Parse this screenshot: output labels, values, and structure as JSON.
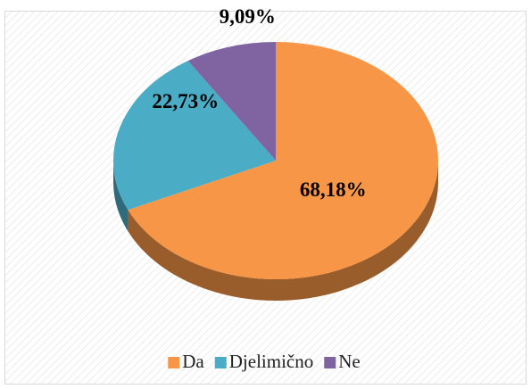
{
  "chart_data": {
    "type": "pie",
    "categories": [
      "Da",
      "Djelimično",
      "Ne"
    ],
    "values": [
      68.18,
      22.73,
      9.09
    ],
    "value_labels": [
      "68,18%",
      "22,73%",
      "9,09%"
    ],
    "colors": [
      "#f79646",
      "#4bacc6",
      "#8064a2"
    ],
    "legend": "bottom"
  }
}
